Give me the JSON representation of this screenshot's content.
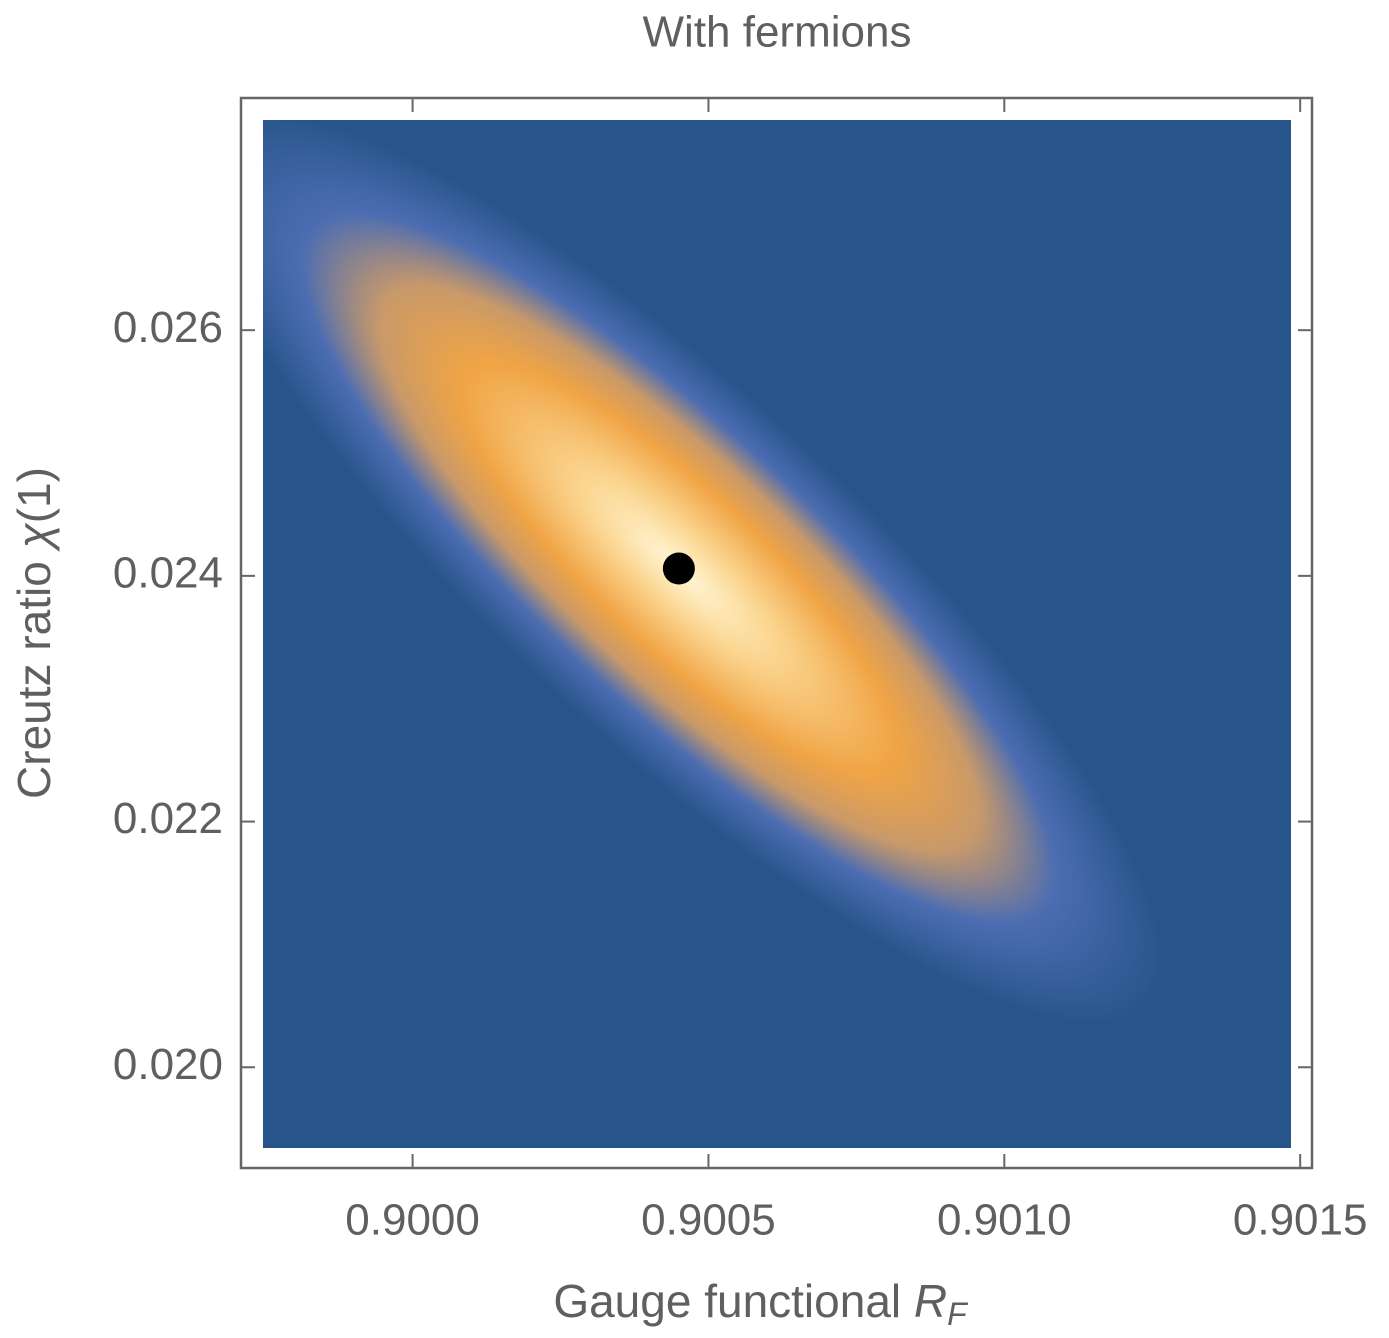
{
  "chart_data": {
    "type": "scatter",
    "title": "With fermions",
    "xlabel": {
      "text": "Gauge functional ",
      "symbol": "R",
      "subscript": "F"
    },
    "ylabel": {
      "text": "Creutz ratio ",
      "symbol": "χ",
      "suffix": "(1)"
    },
    "x": [
      0.90045
    ],
    "y": [
      0.02406
    ],
    "color": "#000000",
    "xlim": [
      0.89971,
      0.90152
    ],
    "ylim": [
      0.01918,
      0.02789
    ],
    "xticks": [
      {
        "value": 0.9,
        "label": "0.9000"
      },
      {
        "value": 0.9005,
        "label": "0.9005"
      },
      {
        "value": 0.901,
        "label": "0.9010"
      },
      {
        "value": 0.9015,
        "label": "0.9015"
      }
    ],
    "yticks": [
      {
        "value": 0.02,
        "label": "0.020"
      },
      0.022,
      0.024,
      0.026
    ]
  }
}
